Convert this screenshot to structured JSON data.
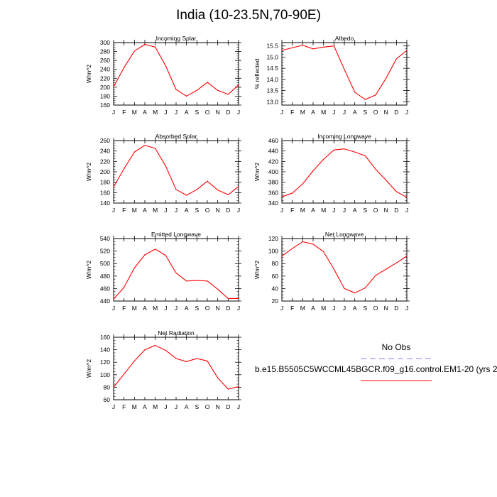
{
  "title": "India (10-23.5N,70-90E)",
  "legend": {
    "obs_label": "No Obs",
    "model_label": "b.e15.B5505C5WCCML45BGCR.f09_g16.control.EM1-20 (yrs 2",
    "obs_color": "#7f7fff",
    "model_color": "#ff0000"
  },
  "chart_data": [
    {
      "type": "line",
      "title": "Incoming Solar",
      "ylabel": "W/m^2",
      "x": [
        "J",
        "F",
        "M",
        "A",
        "M",
        "J",
        "J",
        "A",
        "S",
        "O",
        "N",
        "D",
        "J"
      ],
      "series": [
        {
          "values": [
            201,
            244,
            281,
            296,
            290,
            248,
            195,
            180,
            193,
            211,
            193,
            184,
            205
          ]
        }
      ],
      "ylim": [
        160,
        300
      ],
      "yticks": [
        160,
        180,
        200,
        220,
        240,
        260,
        280,
        300
      ],
      "ytick_labels": [
        "160",
        "180",
        "200",
        "220",
        "240",
        "260",
        "280",
        "300"
      ],
      "grid": false
    },
    {
      "type": "line",
      "title": "Albedo",
      "ylabel": "% reflected",
      "x": [
        "J",
        "F",
        "M",
        "A",
        "M",
        "J",
        "J",
        "A",
        "S",
        "O",
        "N",
        "D",
        "J"
      ],
      "series": [
        {
          "values": [
            15.3,
            15.42,
            15.53,
            15.37,
            15.45,
            15.5,
            14.45,
            13.43,
            13.1,
            13.3,
            14.05,
            14.92,
            15.3
          ]
        }
      ],
      "ylim": [
        12.85,
        15.65
      ],
      "yticks": [
        13.0,
        13.5,
        14.0,
        14.5,
        15.0,
        15.5
      ],
      "ytick_labels": [
        "13.0",
        "13.5",
        "14.0",
        "14.5",
        "15.0",
        "15.5"
      ],
      "grid": false
    },
    {
      "type": "line",
      "title": "Absorbed Solar",
      "ylabel": "W/m^2",
      "x": [
        "J",
        "F",
        "M",
        "A",
        "M",
        "J",
        "J",
        "A",
        "S",
        "O",
        "N",
        "D",
        "J"
      ],
      "series": [
        {
          "values": [
            171,
            206,
            238,
            251,
            245,
            211,
            166,
            155,
            166,
            182,
            165,
            156,
            172
          ]
        }
      ],
      "ylim": [
        140,
        260
      ],
      "yticks": [
        140,
        160,
        180,
        200,
        220,
        240,
        260
      ],
      "ytick_labels": [
        "140",
        "160",
        "180",
        "200",
        "220",
        "240",
        "260"
      ],
      "grid": false
    },
    {
      "type": "line",
      "title": "Incoming Longwave",
      "ylabel": "W/m^2",
      "x": [
        "J",
        "F",
        "M",
        "A",
        "M",
        "J",
        "J",
        "A",
        "S",
        "O",
        "N",
        "D",
        "J"
      ],
      "series": [
        {
          "values": [
            352,
            359,
            377,
            402,
            424,
            442,
            444,
            438,
            431,
            405,
            384,
            362,
            351
          ]
        }
      ],
      "ylim": [
        340,
        460
      ],
      "yticks": [
        340,
        360,
        380,
        400,
        420,
        440,
        460
      ],
      "ytick_labels": [
        "340",
        "360",
        "380",
        "400",
        "420",
        "440",
        "460"
      ],
      "grid": false
    },
    {
      "type": "line",
      "title": "Emitted Longwave",
      "ylabel": "W/m^2",
      "x": [
        "J",
        "F",
        "M",
        "A",
        "M",
        "J",
        "J",
        "A",
        "S",
        "O",
        "N",
        "D",
        "J"
      ],
      "series": [
        {
          "values": [
            443,
            462,
            493,
            514,
            523,
            513,
            485,
            472,
            473,
            472,
            459,
            444,
            444
          ]
        }
      ],
      "ylim": [
        440,
        540
      ],
      "yticks": [
        440,
        460,
        480,
        500,
        520,
        540
      ],
      "ytick_labels": [
        "440",
        "460",
        "480",
        "500",
        "520",
        "540"
      ],
      "grid": false
    },
    {
      "type": "line",
      "title": "Net Longwave",
      "ylabel": "W/m^2",
      "x": [
        "J",
        "F",
        "M",
        "A",
        "M",
        "J",
        "J",
        "A",
        "S",
        "O",
        "N",
        "D",
        "J"
      ],
      "series": [
        {
          "values": [
            92,
            104,
            115,
            111,
            99,
            71,
            40,
            33,
            41,
            61,
            71,
            81,
            92
          ]
        }
      ],
      "ylim": [
        20,
        120
      ],
      "yticks": [
        20,
        40,
        60,
        80,
        100,
        120
      ],
      "ytick_labels": [
        "20",
        "40",
        "60",
        "80",
        "100",
        "120"
      ],
      "grid": false
    },
    {
      "type": "line",
      "title": "Net Radiation",
      "ylabel": "W/m^2",
      "x": [
        "J",
        "F",
        "M",
        "A",
        "M",
        "J",
        "J",
        "A",
        "S",
        "O",
        "N",
        "D",
        "J"
      ],
      "series": [
        {
          "values": [
            80,
            101,
            122,
            140,
            147,
            139,
            126,
            121,
            126,
            122,
            95,
            77,
            81
          ]
        }
      ],
      "ylim": [
        60,
        160
      ],
      "yticks": [
        60,
        80,
        100,
        120,
        140,
        160
      ],
      "ytick_labels": [
        "60",
        "80",
        "100",
        "120",
        "140",
        "160"
      ],
      "grid": false
    }
  ]
}
